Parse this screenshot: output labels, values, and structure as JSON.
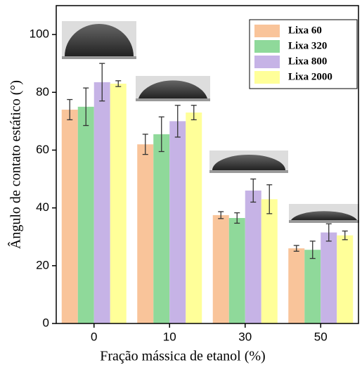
{
  "chart_data": {
    "type": "bar",
    "x_label": "Fração mássica de etanol (%)",
    "y_label": "Ângulo de contato estático (°)",
    "categories": [
      "0",
      "10",
      "30",
      "50"
    ],
    "series": [
      {
        "name": "Lixa 60",
        "color": "#f9c49a",
        "values": [
          74,
          62,
          37.5,
          26
        ],
        "errors": [
          3.5,
          3.5,
          1.2,
          1
        ]
      },
      {
        "name": "Lixa 320",
        "color": "#8fd99a",
        "values": [
          75,
          65.5,
          36.5,
          25.5
        ],
        "errors": [
          6.5,
          6,
          1.8,
          3
        ]
      },
      {
        "name": "Lixa 800",
        "color": "#c6b3e6",
        "values": [
          83.5,
          70,
          46,
          31.5
        ],
        "errors": [
          6.5,
          5.5,
          4,
          3
        ]
      },
      {
        "name": "Lixa 2000",
        "color": "#ffff99",
        "values": [
          83,
          73,
          43,
          30.5
        ],
        "errors": [
          1,
          2.5,
          5,
          1.5
        ]
      }
    ],
    "ylim": [
      0,
      110
    ],
    "yticks": [
      0,
      20,
      40,
      60,
      80,
      100
    ],
    "legend": "upper right"
  }
}
